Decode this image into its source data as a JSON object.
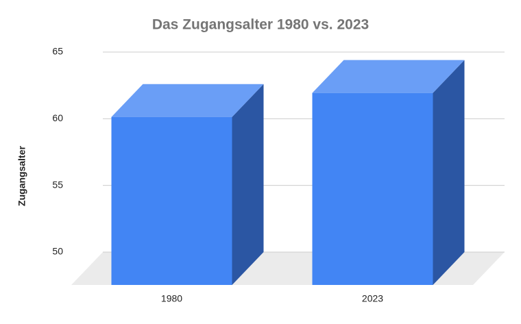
{
  "chart_data": {
    "type": "bar3d",
    "title": "Das Zugangsalter 1980 vs. 2023",
    "y_label": "Zugangsalter",
    "categories": [
      "1980",
      "2023"
    ],
    "values": [
      62.6,
      64.4
    ],
    "color": "#4285f4",
    "ylim": [
      50,
      65
    ],
    "yticks": [
      50,
      55,
      60,
      65
    ],
    "grid": true
  }
}
